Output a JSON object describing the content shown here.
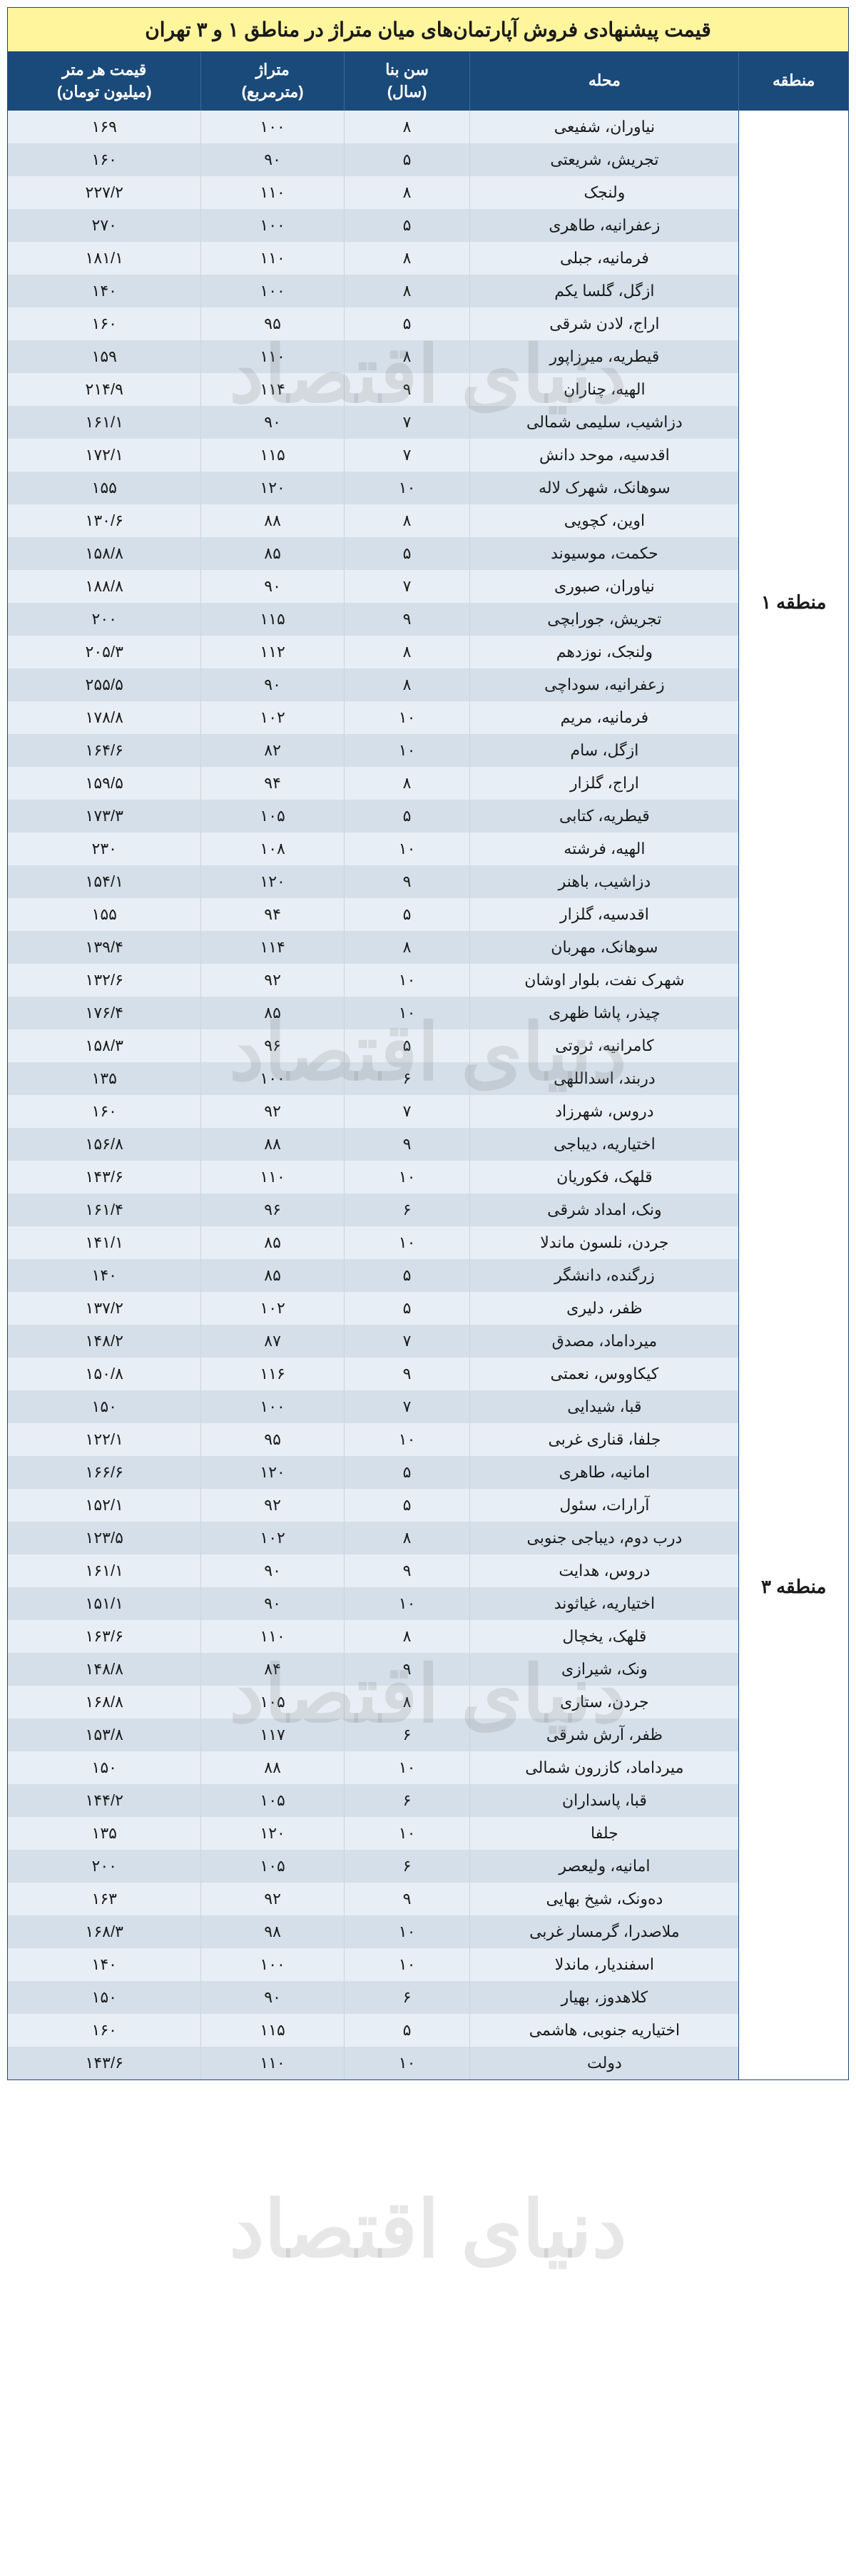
{
  "title": "قیمت پیشنهادی فروش آپارتمان‌های میان متراژ در مناطق ۱ و ۳ تهران",
  "columns": {
    "region": "منطقه",
    "neighborhood": "محله",
    "age": "سن بنا\n(سال)",
    "area": "متراژ\n(مترمربع)",
    "price": "قیمت هر متر\n(میلیون تومان)"
  },
  "watermark_text": "دنیای اقتصاد",
  "style": {
    "title_bg": "#fff59d",
    "header_bg": "#1a4a7a",
    "header_fg": "#ffffff",
    "row_odd_bg": "#e8eef5",
    "row_even_bg": "#d4dfe9",
    "region_bg": "#ffffff",
    "border_color": "#1a4a7a",
    "grid_color": "#c8d4e0",
    "font_family": "Tahoma",
    "title_fontsize": 28,
    "header_fontsize": 22,
    "cell_fontsize": 22,
    "watermark_color": "rgba(120,120,120,0.18)",
    "watermark_fontsize": 110
  },
  "regions": [
    {
      "label": "منطقه ۱",
      "rows": [
        {
          "n": "نیاوران، شفیعی",
          "age": "۸",
          "area": "۱۰۰",
          "price": "۱۶۹"
        },
        {
          "n": "تجریش، شریعتی",
          "age": "۵",
          "area": "۹۰",
          "price": "۱۶۰"
        },
        {
          "n": "ولنجک",
          "age": "۸",
          "area": "۱۱۰",
          "price": "۲۲۷/۲"
        },
        {
          "n": "زعفرانیه، طاهری",
          "age": "۵",
          "area": "۱۰۰",
          "price": "۲۷۰"
        },
        {
          "n": "فرمانیه، جبلی",
          "age": "۸",
          "area": "۱۱۰",
          "price": "۱۸۱/۱"
        },
        {
          "n": "ازگل، گلسا یکم",
          "age": "۸",
          "area": "۱۰۰",
          "price": "۱۴۰"
        },
        {
          "n": "اراج، لادن شرقی",
          "age": "۵",
          "area": "۹۵",
          "price": "۱۶۰"
        },
        {
          "n": "قیطریه، میرزاپور",
          "age": "۸",
          "area": "۱۱۰",
          "price": "۱۵۹"
        },
        {
          "n": "الهیه، چناران",
          "age": "۹",
          "area": "۱۱۴",
          "price": "۲۱۴/۹"
        },
        {
          "n": "دزاشیب، سلیمی شمالی",
          "age": "۷",
          "area": "۹۰",
          "price": "۱۶۱/۱"
        },
        {
          "n": "اقدسیه، موحد دانش",
          "age": "۷",
          "area": "۱۱۵",
          "price": "۱۷۲/۱"
        },
        {
          "n": "سوهانک، شهرک لاله",
          "age": "۱۰",
          "area": "۱۲۰",
          "price": "۱۵۵"
        },
        {
          "n": "اوین، کچویی",
          "age": "۸",
          "area": "۸۸",
          "price": "۱۳۰/۶"
        },
        {
          "n": "حکمت، موسیوند",
          "age": "۵",
          "area": "۸۵",
          "price": "۱۵۸/۸"
        },
        {
          "n": "نیاوران، صبوری",
          "age": "۷",
          "area": "۹۰",
          "price": "۱۸۸/۸"
        },
        {
          "n": "تجریش، جورابچی",
          "age": "۹",
          "area": "۱۱۵",
          "price": "۲۰۰"
        },
        {
          "n": "ولنجک، نوزدهم",
          "age": "۸",
          "area": "۱۱۲",
          "price": "۲۰۵/۳"
        },
        {
          "n": "زعفرانیه، سوداچی",
          "age": "۸",
          "area": "۹۰",
          "price": "۲۵۵/۵"
        },
        {
          "n": "فرمانیه، مریم",
          "age": "۱۰",
          "area": "۱۰۲",
          "price": "۱۷۸/۸"
        },
        {
          "n": "ازگل، سام",
          "age": "۱۰",
          "area": "۸۲",
          "price": "۱۶۴/۶"
        },
        {
          "n": "اراج، گلزار",
          "age": "۸",
          "area": "۹۴",
          "price": "۱۵۹/۵"
        },
        {
          "n": "قیطریه، کتابی",
          "age": "۵",
          "area": "۱۰۵",
          "price": "۱۷۳/۳"
        },
        {
          "n": "الهیه، فرشته",
          "age": "۱۰",
          "area": "۱۰۸",
          "price": "۲۳۰"
        },
        {
          "n": "دزاشیب، باهنر",
          "age": "۹",
          "area": "۱۲۰",
          "price": "۱۵۴/۱"
        },
        {
          "n": "اقدسیه، گلزار",
          "age": "۵",
          "area": "۹۴",
          "price": "۱۵۵"
        },
        {
          "n": "سوهانک، مهربان",
          "age": "۸",
          "area": "۱۱۴",
          "price": "۱۳۹/۴"
        },
        {
          "n": "شهرک نفت، بلوار اوشان",
          "age": "۱۰",
          "area": "۹۲",
          "price": "۱۳۲/۶"
        },
        {
          "n": "چیذر، پاشا ظهری",
          "age": "۱۰",
          "area": "۸۵",
          "price": "۱۷۶/۴"
        },
        {
          "n": "کامرانیه، ثروتی",
          "age": "۵",
          "area": "۹۶",
          "price": "۱۵۸/۳"
        },
        {
          "n": "دربند، اسداللهی",
          "age": "۶",
          "area": "۱۰۰",
          "price": "۱۳۵"
        }
      ]
    },
    {
      "label": "منطقه ۳",
      "rows": [
        {
          "n": "دروس، شهرزاد",
          "age": "۷",
          "area": "۹۲",
          "price": "۱۶۰"
        },
        {
          "n": "اختیاریه، دیباجی",
          "age": "۹",
          "area": "۸۸",
          "price": "۱۵۶/۸"
        },
        {
          "n": "قلهک، فکوریان",
          "age": "۱۰",
          "area": "۱۱۰",
          "price": "۱۴۳/۶"
        },
        {
          "n": "ونک، امداد شرقی",
          "age": "۶",
          "area": "۹۶",
          "price": "۱۶۱/۴"
        },
        {
          "n": "جردن، نلسون ماندلا",
          "age": "۱۰",
          "area": "۸۵",
          "price": "۱۴۱/۱"
        },
        {
          "n": "زرگنده، دانشگر",
          "age": "۵",
          "area": "۸۵",
          "price": "۱۴۰"
        },
        {
          "n": "ظفر، دلیری",
          "age": "۵",
          "area": "۱۰۲",
          "price": "۱۳۷/۲"
        },
        {
          "n": "میرداماد، مصدق",
          "age": "۷",
          "area": "۸۷",
          "price": "۱۴۸/۲"
        },
        {
          "n": "کیکاووس، نعمتی",
          "age": "۹",
          "area": "۱۱۶",
          "price": "۱۵۰/۸"
        },
        {
          "n": "قبا، شیدایی",
          "age": "۷",
          "area": "۱۰۰",
          "price": "۱۵۰"
        },
        {
          "n": "جلفا، قناری غربی",
          "age": "۱۰",
          "area": "۹۵",
          "price": "۱۲۲/۱"
        },
        {
          "n": "امانیه، طاهری",
          "age": "۵",
          "area": "۱۲۰",
          "price": "۱۶۶/۶"
        },
        {
          "n": "آرارات، سئول",
          "age": "۵",
          "area": "۹۲",
          "price": "۱۵۲/۱"
        },
        {
          "n": "درب دوم، دیباجی جنوبی",
          "age": "۸",
          "area": "۱۰۲",
          "price": "۱۲۳/۵"
        },
        {
          "n": "دروس، هدایت",
          "age": "۹",
          "area": "۹۰",
          "price": "۱۶۱/۱"
        },
        {
          "n": "اختیاریه، غیاثوند",
          "age": "۱۰",
          "area": "۹۰",
          "price": "۱۵۱/۱"
        },
        {
          "n": "قلهک، یخچال",
          "age": "۸",
          "area": "۱۱۰",
          "price": "۱۶۳/۶"
        },
        {
          "n": "ونک، شیرازی",
          "age": "۹",
          "area": "۸۴",
          "price": "۱۴۸/۸"
        },
        {
          "n": "جردن، ستاری",
          "age": "۸",
          "area": "۱۰۵",
          "price": "۱۶۸/۸"
        },
        {
          "n": "ظفر، آرش شرقی",
          "age": "۶",
          "area": "۱۱۷",
          "price": "۱۵۳/۸"
        },
        {
          "n": "میرداماد، کازرون شمالی",
          "age": "۱۰",
          "area": "۸۸",
          "price": "۱۵۰"
        },
        {
          "n": "قبا، پاسداران",
          "age": "۶",
          "area": "۱۰۵",
          "price": "۱۴۴/۲"
        },
        {
          "n": "جلفا",
          "age": "۱۰",
          "area": "۱۲۰",
          "price": "۱۳۵"
        },
        {
          "n": "امانیه، ولیعصر",
          "age": "۶",
          "area": "۱۰۵",
          "price": "۲۰۰"
        },
        {
          "n": "ده‌ونک، شیخ بهایی",
          "age": "۹",
          "area": "۹۲",
          "price": "۱۶۳"
        },
        {
          "n": "ملاصدرا، گرمسار غربی",
          "age": "۱۰",
          "area": "۹۸",
          "price": "۱۶۸/۳"
        },
        {
          "n": "اسفندیار، ماندلا",
          "age": "۱۰",
          "area": "۱۰۰",
          "price": "۱۴۰"
        },
        {
          "n": "کلاهدوز، بهیار",
          "age": "۶",
          "area": "۹۰",
          "price": "۱۵۰"
        },
        {
          "n": "اختیاریه جنوبی، هاشمی",
          "age": "۵",
          "area": "۱۱۵",
          "price": "۱۶۰"
        },
        {
          "n": "دولت",
          "age": "۱۰",
          "area": "۱۱۰",
          "price": "۱۴۳/۶"
        }
      ]
    }
  ],
  "watermarks_y": [
    450,
    1400,
    2300,
    3050
  ]
}
